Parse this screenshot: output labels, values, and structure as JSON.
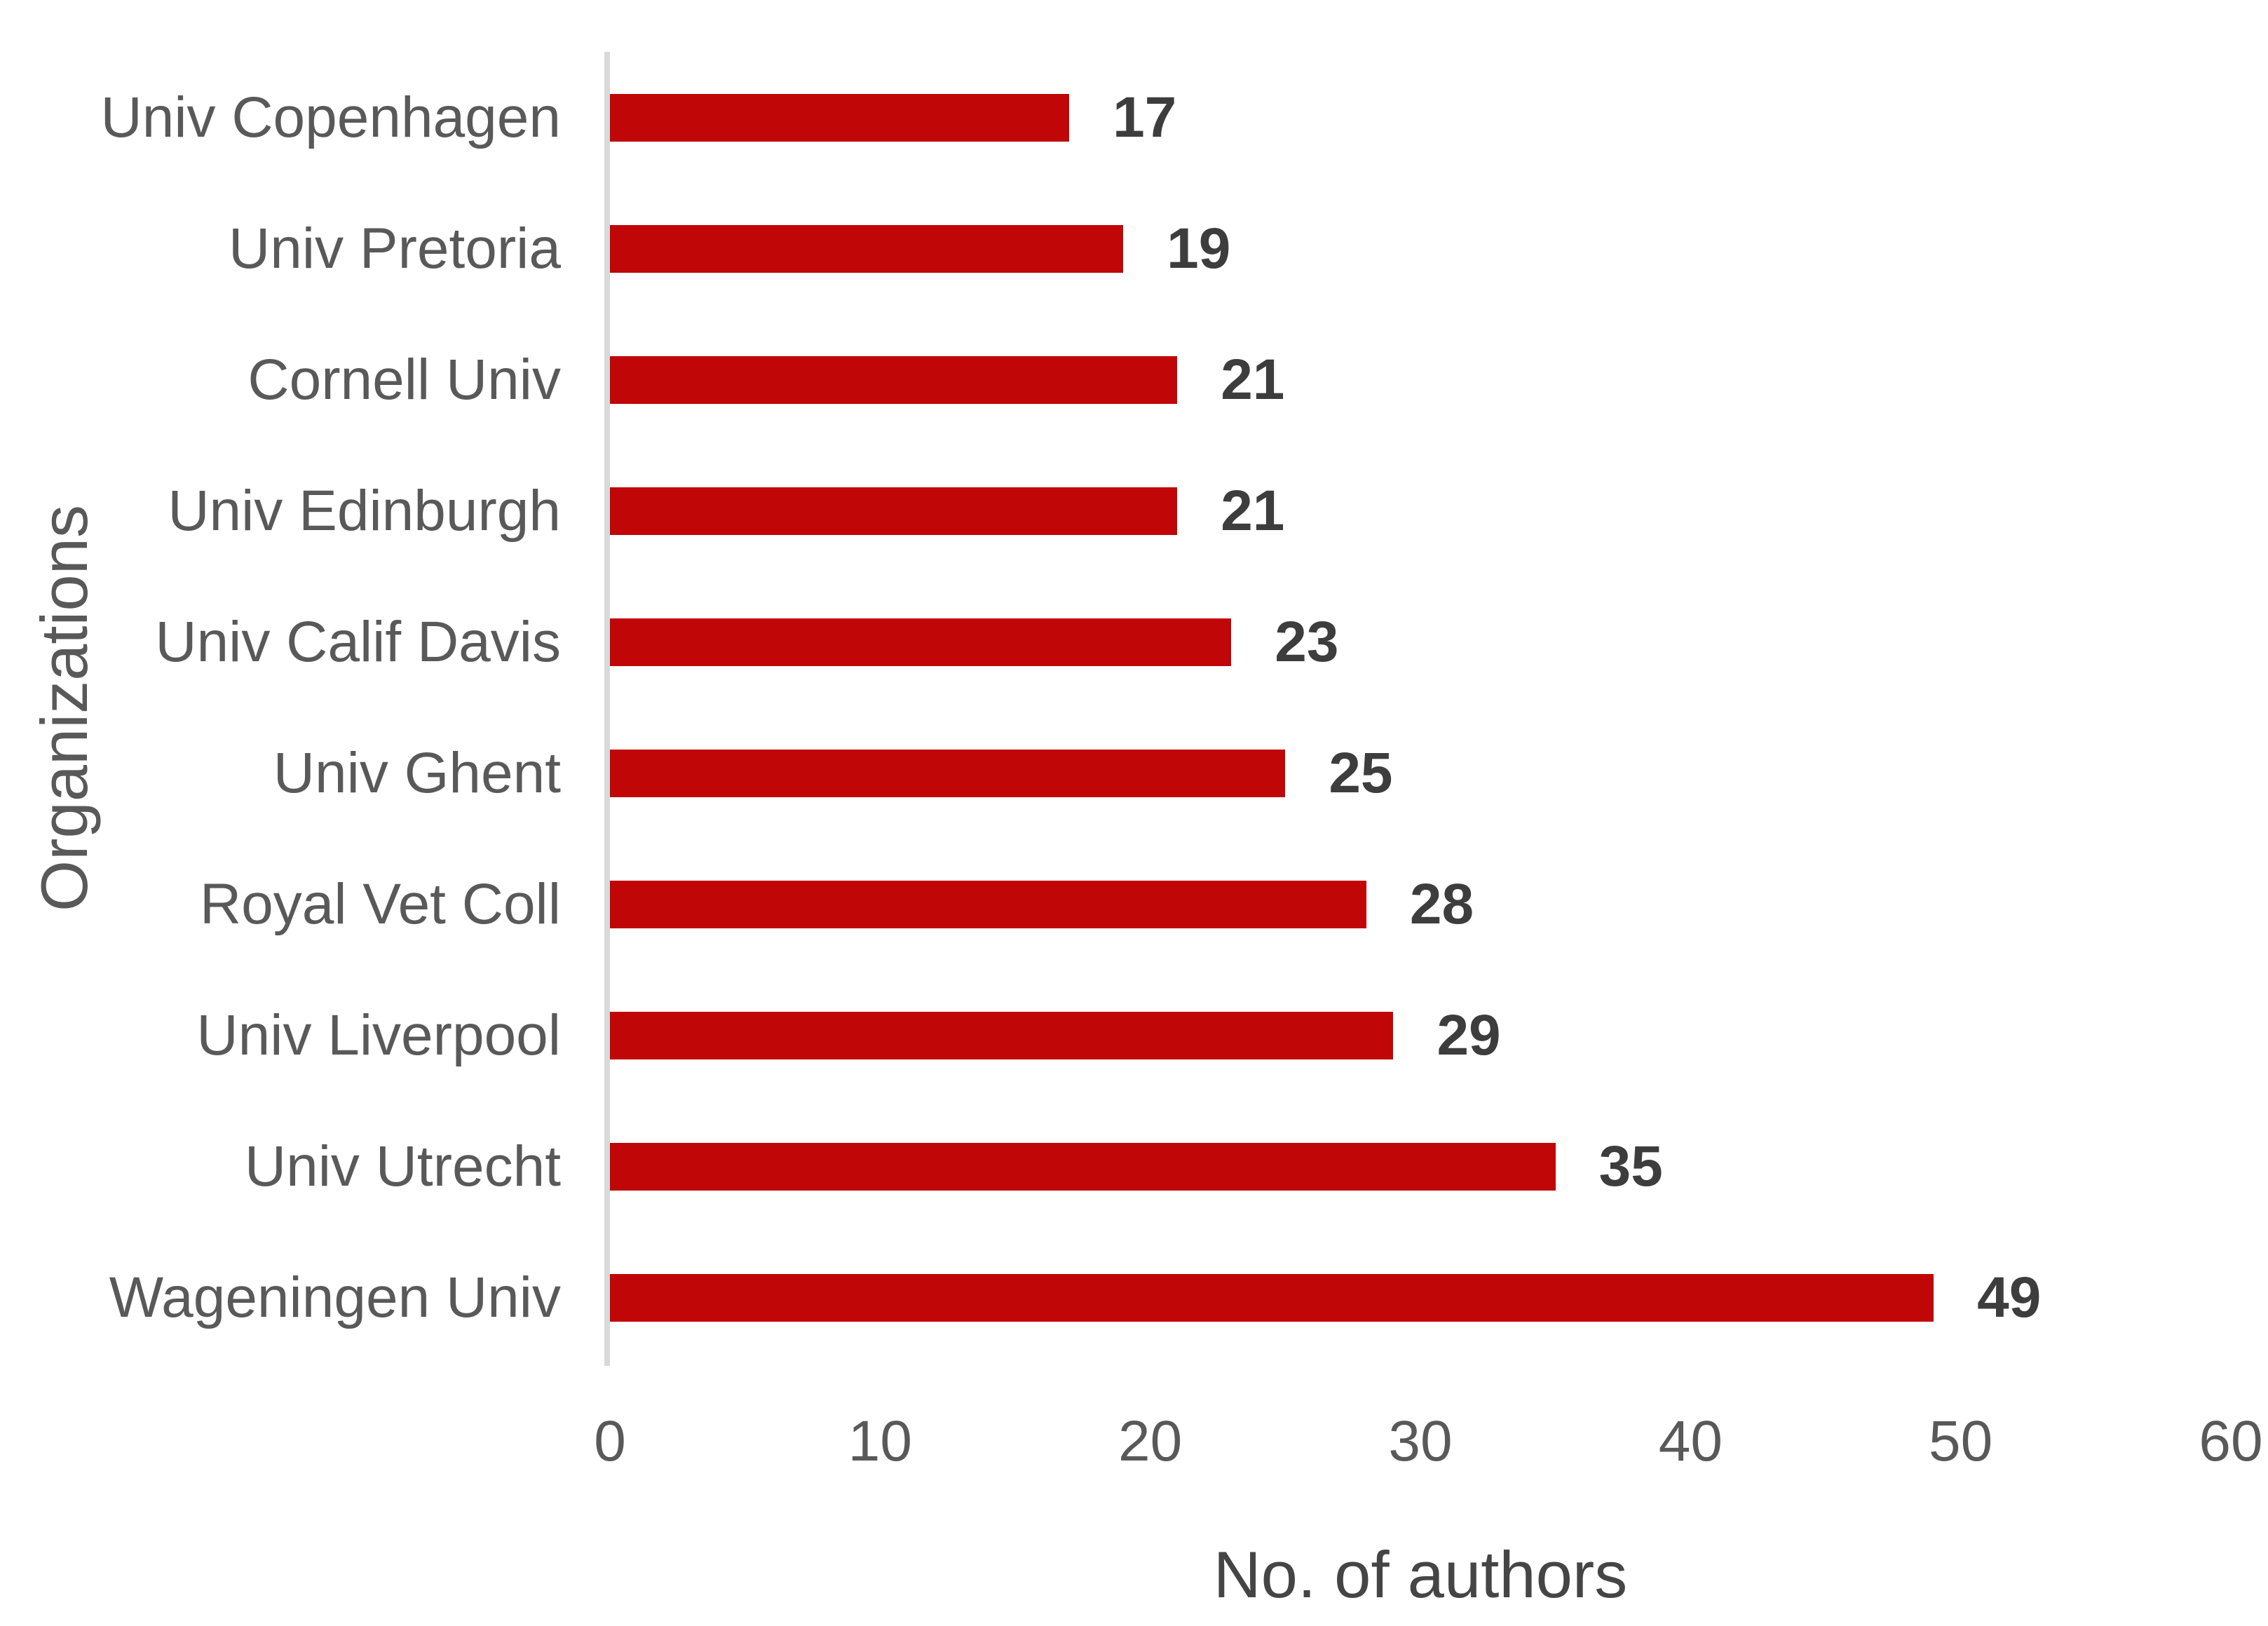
{
  "chart_data": {
    "type": "bar",
    "orientation": "horizontal",
    "categories": [
      "Univ Copenhagen",
      "Univ Pretoria",
      "Cornell Univ",
      "Univ Edinburgh",
      "Univ Calif Davis",
      "Univ Ghent",
      "Royal Vet Coll",
      "Univ Liverpool",
      "Univ Utrecht",
      "Wageningen Univ"
    ],
    "values": [
      17,
      19,
      21,
      21,
      23,
      25,
      28,
      29,
      35,
      49
    ],
    "title": "",
    "xlabel": "No. of authors",
    "ylabel": "Organizations",
    "xlim": [
      0,
      60
    ],
    "x_ticks": [
      0,
      10,
      20,
      30,
      40,
      50,
      60
    ],
    "grid": false,
    "legend_position": "none",
    "bar_color": "#C00606",
    "axis_line_color": "#D9D9D9",
    "category_label_color": "#595959",
    "value_label_color": "#3D3D3D"
  }
}
